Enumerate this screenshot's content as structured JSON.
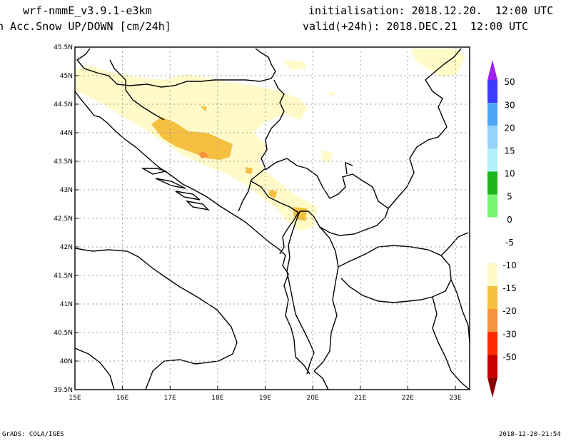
{
  "header": {
    "model": "wrf-nmmE_v3.9.1-e3km",
    "field": "n Acc.Snow UP/DOWN [cm/24h]",
    "init": "initialisation: 2018.12.20.  12:00 UTC",
    "valid": "valid(+24h): 2018.DEC.21  12:00 UTC"
  },
  "footer": {
    "left": "GrADS: COLA/IGES",
    "right": "2018-12-20-21:54"
  },
  "map": {
    "lon_range": [
      15,
      23.3
    ],
    "lat_range": [
      39.5,
      45.5
    ],
    "lon_ticks": [
      "15E",
      "16E",
      "17E",
      "18E",
      "19E",
      "20E",
      "21E",
      "22E",
      "23E"
    ],
    "lat_ticks": [
      "39.5N",
      "40N",
      "40.5N",
      "41N",
      "41.5N",
      "42N",
      "42.5N",
      "43N",
      "43.5N",
      "44N",
      "44.5N",
      "45N",
      "45.5N"
    ]
  },
  "colorbar": {
    "labels": [
      "50",
      "30",
      "20",
      "15",
      "10",
      "5",
      "0",
      "-5",
      "-10",
      "-15",
      "-20",
      "-30",
      "-50"
    ],
    "colors": [
      "#a01ef0",
      "#3c3cff",
      "#50a5f5",
      "#96d2fa",
      "#b4f0fa",
      "#1eb41e",
      "#78f573",
      "#ffffff",
      "#ffffff",
      "#fffac8",
      "#f5c040",
      "#f59440",
      "#ff2a00",
      "#c80000",
      "#8b0000"
    ]
  }
}
